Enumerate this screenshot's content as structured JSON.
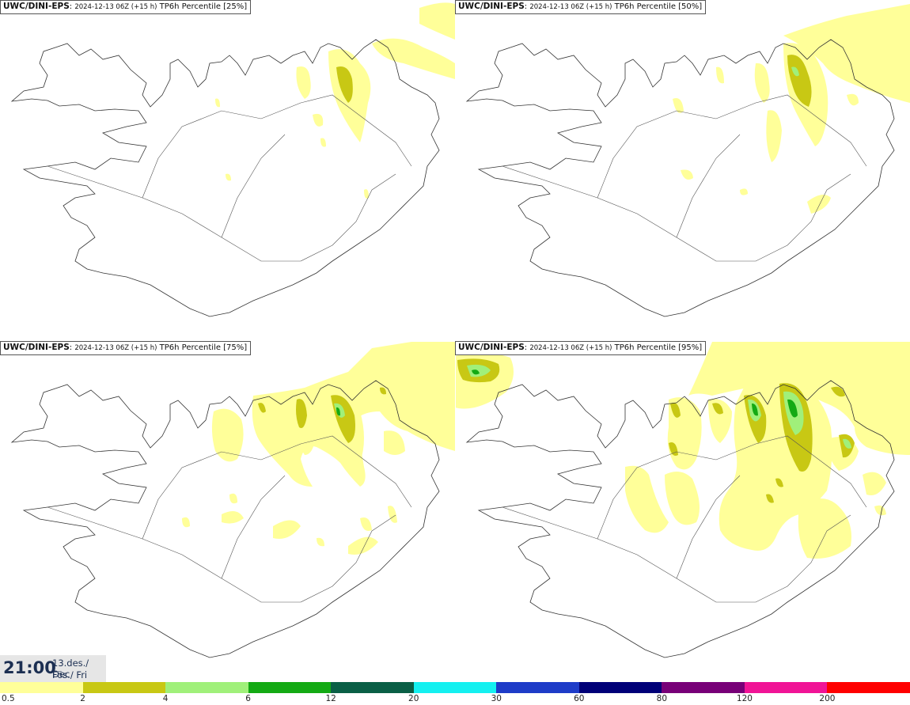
{
  "panels": [
    {
      "model": "UWC/DINI-EPS",
      "run": "2024-12-13 06Z (+15 h)",
      "product": "TP6h Percentile [25%]"
    },
    {
      "model": "UWC/DINI-EPS",
      "run": "2024-12-13 06Z (+15 h)",
      "product": "TP6h Percentile [50%]"
    },
    {
      "model": "UWC/DINI-EPS",
      "run": "2024-12-13 06Z (+15 h)",
      "product": "TP6h Percentile [75%]"
    },
    {
      "model": "UWC/DINI-EPS",
      "run": "2024-12-13 06Z (+15 h)",
      "product": "TP6h Percentile [95%]"
    }
  ],
  "valid_time": {
    "time": "21:00",
    "date_line1": "13.des./ Dec",
    "date_line2": "Fös./ Fri"
  },
  "legend": {
    "colors": [
      "#ffff99",
      "#c8c814",
      "#a0f07a",
      "#14aa14",
      "#0a5f46",
      "#14f0f0",
      "#1e3cc8",
      "#000078",
      "#780078",
      "#f01496",
      "#ff0000"
    ],
    "ticks": [
      "0.5",
      "2",
      "4",
      "6",
      "12",
      "20",
      "30",
      "60",
      "80",
      "120",
      "200"
    ]
  },
  "colors": {
    "land_outline": "#333333",
    "light": "#ffff99",
    "mid": "#c8c814",
    "bright": "#a0f07a",
    "green": "#14aa14"
  }
}
